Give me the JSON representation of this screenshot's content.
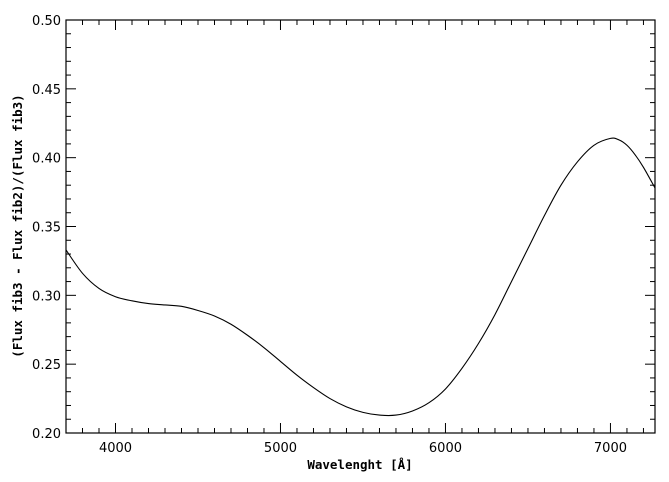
{
  "chart_data": {
    "type": "line",
    "title": "",
    "xlabel": "Wavelenght [Å]",
    "ylabel": "(Flux fib3 - Flux fib2)/(Flux fib3)",
    "xlim": [
      3700,
      7270
    ],
    "ylim": [
      0.2,
      0.5
    ],
    "x_ticks": [
      4000,
      5000,
      6000,
      7000
    ],
    "x_tick_labels": [
      "4000",
      "5000",
      "6000",
      "7000"
    ],
    "y_ticks": [
      0.2,
      0.25,
      0.3,
      0.35,
      0.4,
      0.45,
      0.5
    ],
    "y_tick_labels": [
      "0.20",
      "0.25",
      "0.30",
      "0.35",
      "0.40",
      "0.45",
      "0.50"
    ],
    "grid": false,
    "series": [
      {
        "x": [
          3700,
          3800,
          3900,
          4000,
          4100,
          4200,
          4300,
          4400,
          4500,
          4600,
          4700,
          4800,
          4900,
          5000,
          5100,
          5200,
          5300,
          5400,
          5500,
          5600,
          5700,
          5800,
          5900,
          6000,
          6100,
          6200,
          6300,
          6400,
          6500,
          6600,
          6700,
          6800,
          6900,
          7000,
          7050,
          7100,
          7150,
          7200,
          7270
        ],
        "y": [
          0.333,
          0.316,
          0.305,
          0.299,
          0.296,
          0.294,
          0.293,
          0.292,
          0.289,
          0.285,
          0.279,
          0.271,
          0.262,
          0.252,
          0.242,
          0.233,
          0.225,
          0.219,
          0.215,
          0.213,
          0.213,
          0.216,
          0.222,
          0.232,
          0.247,
          0.265,
          0.286,
          0.31,
          0.334,
          0.358,
          0.38,
          0.397,
          0.409,
          0.414,
          0.413,
          0.409,
          0.402,
          0.393,
          0.378
        ]
      }
    ]
  }
}
